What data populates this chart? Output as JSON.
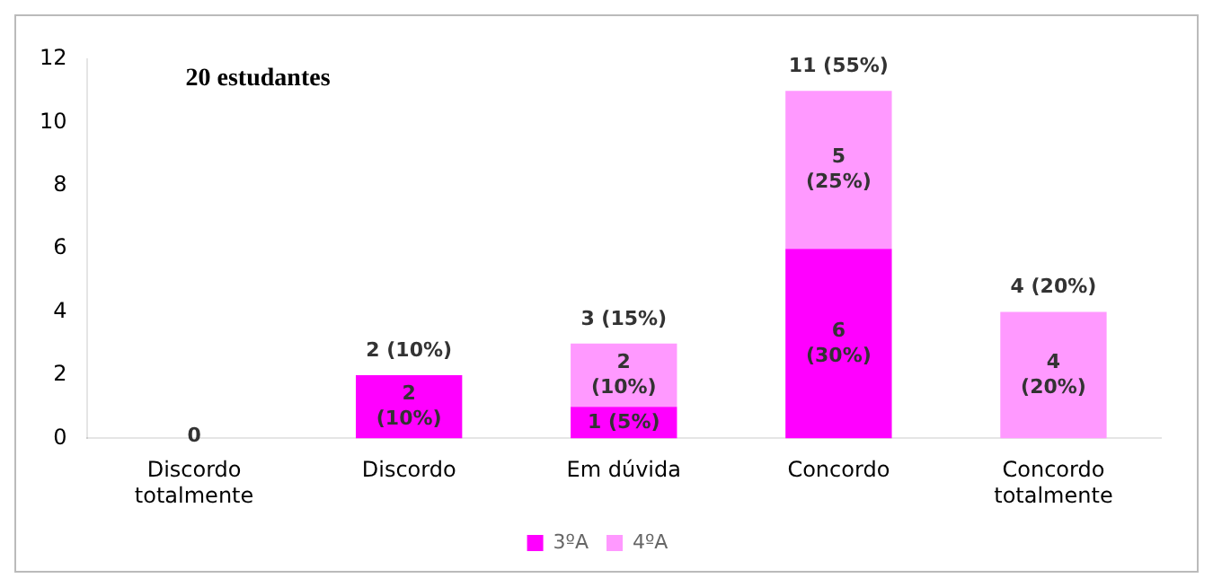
{
  "chart_data": {
    "type": "bar",
    "stacked": true,
    "categories": [
      "Discordo\ntotalmente",
      "Discordo",
      "Em dúvida",
      "Concordo",
      "Concordo\ntotalmente"
    ],
    "series": [
      {
        "name": "3ºA",
        "color": "#ff00ff",
        "values": [
          0,
          2,
          1,
          6,
          0
        ],
        "value_labels": [
          "0",
          "2\n(10%)",
          "1 (5%)",
          "6\n(30%)",
          null
        ]
      },
      {
        "name": "4ºA",
        "color": "#ff99ff",
        "values": [
          0,
          0,
          2,
          5,
          4
        ],
        "value_labels": [
          null,
          null,
          "2\n(10%)",
          "5\n(25%)",
          "4\n(20%)"
        ]
      }
    ],
    "totals": [
      null,
      "2 (10%)",
      "3 (15%)",
      "11 (55%)",
      "4 (20%)"
    ],
    "ylim": [
      0,
      12
    ],
    "yticks": [
      0,
      2,
      4,
      6,
      8,
      10,
      12
    ],
    "grid": false,
    "legend": "bottom",
    "annotations": [
      "20 estudantes"
    ]
  }
}
